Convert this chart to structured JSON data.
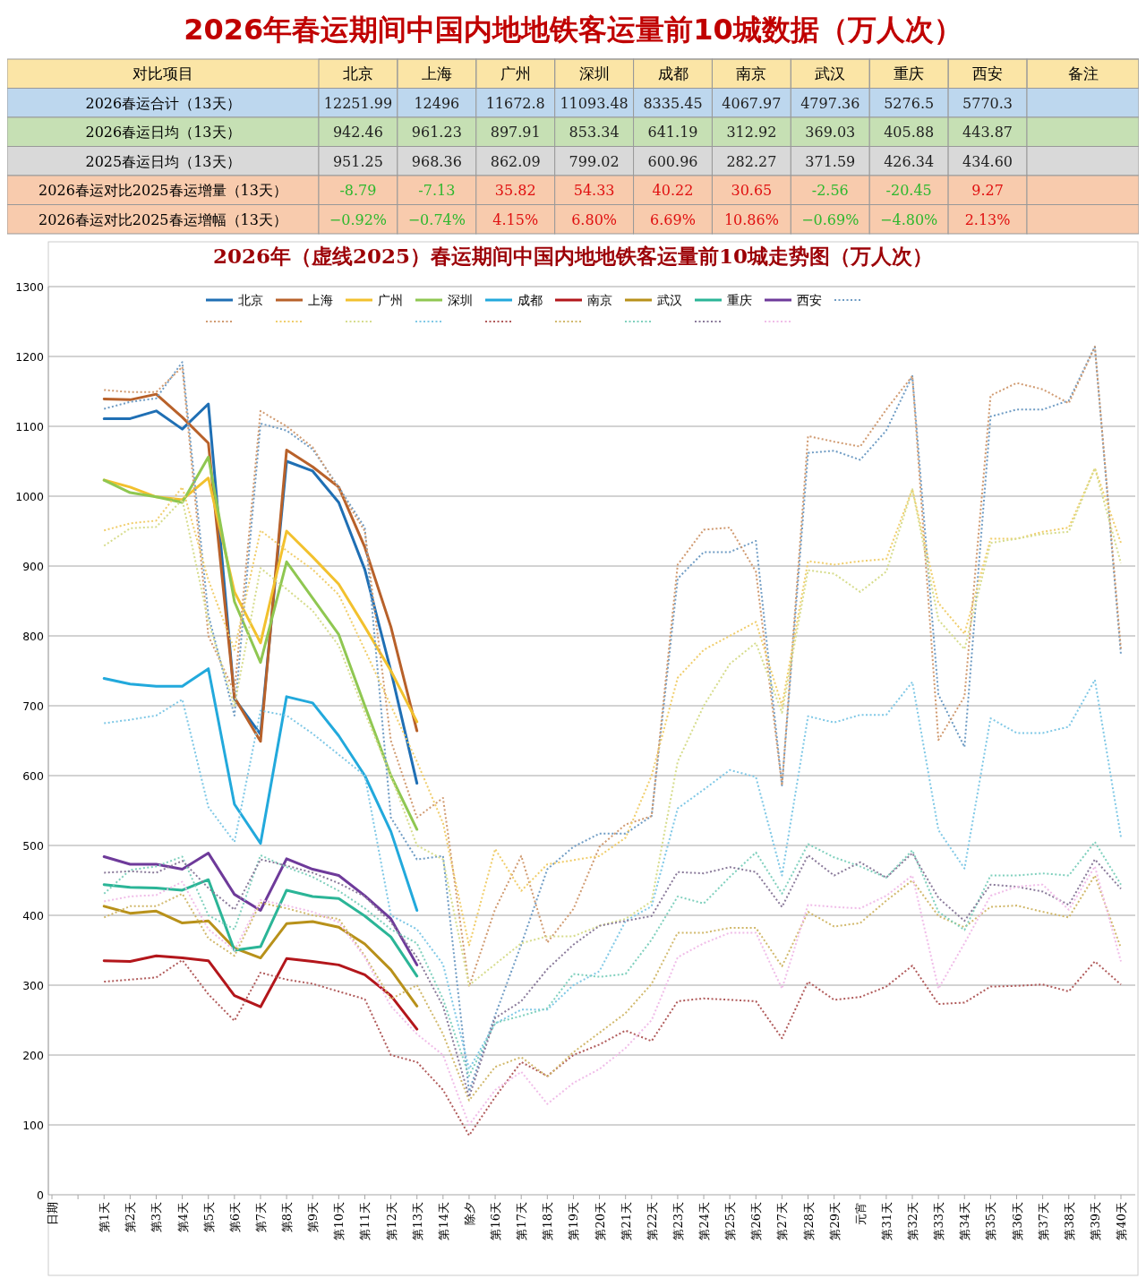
{
  "chart_data": [
    {
      "type": "heatmap",
      "title": "2026年春运期间中国内地地铁客运量前10城数据（万人次）",
      "ylabel": "对比项目",
      "categories": [
        "北京",
        "上海",
        "广州",
        "深圳",
        "成都",
        "南京",
        "武汉",
        "重庆",
        "西安",
        "备注"
      ],
      "y_categories": [
        "2026春运合计（13天）",
        "2026春运日均（13天）",
        "2025春运日均（13天）",
        "2026春运对比2025春运增量（13天）",
        "2026春运对比2025春运增幅（13天）"
      ],
      "colors": [
        "#bdd7ee",
        "#c6e0b4",
        "#d9d9d9",
        "#f8cbad",
        "#f8cbad"
      ],
      "cells": [
        [
          12251.99,
          12496,
          11672.8,
          11093.48,
          8335.45,
          4067.97,
          4797.36,
          5276.5,
          5770.3,
          null
        ],
        [
          942.46,
          961.23,
          897.91,
          853.34,
          641.19,
          312.92,
          369.03,
          405.88,
          443.87,
          null
        ],
        [
          951.25,
          968.36,
          862.09,
          799.02,
          600.96,
          282.27,
          371.59,
          426.34,
          434.6,
          null
        ],
        [
          -8.79,
          -7.13,
          35.82,
          54.33,
          40.22,
          30.65,
          -2.56,
          -20.45,
          9.27,
          null
        ],
        [
          -0.92,
          -0.74,
          4.15,
          6.8,
          6.69,
          10.86,
          -0.69,
          -4.8,
          2.13,
          null
        ]
      ],
      "cell_labels": [
        [
          "12251.99",
          "12496",
          "11672.8",
          "11093.48",
          "8335.45",
          "4067.97",
          "4797.36",
          "5276.5",
          "5770.3",
          null
        ],
        [
          "942.46",
          "961.23",
          "897.91",
          "853.34",
          "641.19",
          "312.92",
          "369.03",
          "405.88",
          "443.87",
          null
        ],
        [
          "951.25",
          "968.36",
          "862.09",
          "799.02",
          "600.96",
          "282.27",
          "371.59",
          "426.34",
          "434.60",
          null
        ],
        [
          "-8.79",
          "-7.13",
          "35.82",
          "54.33",
          "40.22",
          "30.65",
          "-2.56",
          "-20.45",
          "9.27",
          null
        ],
        [
          "−0.92%",
          "−0.74%",
          "4.15%",
          "6.80%",
          "6.69%",
          "10.86%",
          "−0.69%",
          "−4.80%",
          "2.13%",
          null
        ]
      ]
    },
    {
      "type": "line",
      "title": "2026年（虚线2025）春运期间中国内地地铁客运量前10城走势图（万人次）",
      "categories": [
        "日期",
        null,
        "第1天",
        "第2天",
        "第3天",
        "第4天",
        "第5天",
        "第6天",
        "第7天",
        "第8天",
        "第9天",
        "第10天",
        "第11天",
        "第12天",
        "第13天",
        "第14天",
        "除夕",
        "第16天",
        "第17天",
        "第18天",
        "第19天",
        "第20天",
        "第21天",
        "第22天",
        "第23天",
        "第24天",
        "第25天",
        "第26天",
        "第27天",
        "第28天",
        "第29天",
        "元宵",
        "第31天",
        "第32天",
        "第33天",
        "第34天",
        "第35天",
        "第36天",
        "第37天",
        "第38天",
        "第39天",
        "第40天"
      ],
      "ylim": [
        0,
        1300
      ],
      "yticks": [
        0,
        100,
        200,
        300,
        400,
        500,
        600,
        700,
        800,
        900,
        1000,
        1100,
        1200,
        1300
      ],
      "grid": "y",
      "legend": "top",
      "marker": "none",
      "series": [
        {
          "name": "北京",
          "color": "#1f6fb4",
          "line_style": "solid",
          "values": [
            null,
            null,
            1111,
            1111,
            1122,
            1096,
            1132,
            710,
            659,
            1050,
            1036,
            991,
            895,
            750,
            589,
            null,
            null,
            null,
            null,
            null,
            null,
            null,
            null,
            null,
            null,
            null,
            null,
            null,
            null,
            null,
            null,
            null,
            null,
            null,
            null,
            null,
            null,
            null,
            null,
            null,
            null,
            null
          ]
        },
        {
          "name": "上海",
          "color": "#b8612a",
          "line_style": "solid",
          "values": [
            null,
            null,
            1139,
            1138,
            1146,
            1113,
            1076,
            712,
            649,
            1066,
            1042,
            1013,
            927,
            813,
            664,
            null,
            null,
            null,
            null,
            null,
            null,
            null,
            null,
            null,
            null,
            null,
            null,
            null,
            null,
            null,
            null,
            null,
            null,
            null,
            null,
            null,
            null,
            null,
            null,
            null,
            null,
            null
          ]
        },
        {
          "name": "广州",
          "color": "#f2c12e",
          "line_style": "solid",
          "values": [
            null,
            null,
            1023,
            1013,
            999,
            995,
            1026,
            863,
            790,
            950,
            913,
            874,
            813,
            750,
            677,
            null,
            null,
            null,
            null,
            null,
            null,
            null,
            null,
            null,
            null,
            null,
            null,
            null,
            null,
            null,
            null,
            null,
            null,
            null,
            null,
            null,
            null,
            null,
            null,
            null,
            null,
            null
          ]
        },
        {
          "name": "深圳",
          "color": "#8fc751",
          "line_style": "solid",
          "values": [
            null,
            null,
            1023,
            1005,
            999,
            991,
            1056,
            849,
            762,
            906,
            854,
            802,
            700,
            600,
            523,
            null,
            null,
            null,
            null,
            null,
            null,
            null,
            null,
            null,
            null,
            null,
            null,
            null,
            null,
            null,
            null,
            null,
            null,
            null,
            null,
            null,
            null,
            null,
            null,
            null,
            null,
            null
          ]
        },
        {
          "name": "成都",
          "color": "#22a9dc",
          "line_style": "solid",
          "values": [
            null,
            null,
            739,
            731,
            728,
            728,
            753,
            559,
            503,
            713,
            704,
            657,
            600,
            520,
            407,
            null,
            null,
            null,
            null,
            null,
            null,
            null,
            null,
            null,
            null,
            null,
            null,
            null,
            null,
            null,
            null,
            null,
            null,
            null,
            null,
            null,
            null,
            null,
            null,
            null,
            null,
            null
          ]
        },
        {
          "name": "南京",
          "color": "#b3161b",
          "line_style": "solid",
          "values": [
            null,
            null,
            335,
            334,
            342,
            339,
            335,
            285,
            269,
            338,
            334,
            329,
            315,
            285,
            237,
            null,
            null,
            null,
            null,
            null,
            null,
            null,
            null,
            null,
            null,
            null,
            null,
            null,
            null,
            null,
            null,
            null,
            null,
            null,
            null,
            null,
            null,
            null,
            null,
            null,
            null,
            null
          ]
        },
        {
          "name": "武汉",
          "color": "#b8911a",
          "line_style": "solid",
          "values": [
            null,
            null,
            413,
            403,
            406,
            389,
            392,
            353,
            339,
            388,
            391,
            383,
            359,
            322,
            270,
            null,
            null,
            null,
            null,
            null,
            null,
            null,
            null,
            null,
            null,
            null,
            null,
            null,
            null,
            null,
            null,
            null,
            null,
            null,
            null,
            null,
            null,
            null,
            null,
            null,
            null,
            null
          ]
        },
        {
          "name": "重庆",
          "color": "#2bb597",
          "line_style": "solid",
          "values": [
            null,
            null,
            444,
            440,
            439,
            436,
            451,
            350,
            355,
            436,
            427,
            424,
            399,
            369,
            313,
            null,
            null,
            null,
            null,
            null,
            null,
            null,
            null,
            null,
            null,
            null,
            null,
            null,
            null,
            null,
            null,
            null,
            null,
            null,
            null,
            null,
            null,
            null,
            null,
            null,
            null,
            null
          ]
        },
        {
          "name": "西安",
          "color": "#6e3a9a",
          "line_style": "solid",
          "values": [
            null,
            null,
            484,
            473,
            473,
            466,
            489,
            430,
            407,
            481,
            466,
            457,
            428,
            395,
            329,
            null,
            null,
            null,
            null,
            null,
            null,
            null,
            null,
            null,
            null,
            null,
            null,
            null,
            null,
            null,
            null,
            null,
            null,
            null,
            null,
            null,
            null,
            null,
            null,
            null,
            null,
            null
          ]
        },
        {
          "color": "#6f9cc4",
          "line_style": "dotted",
          "values": [
            null,
            null,
            1125,
            1135,
            1140,
            1192,
            830,
            686,
            1104,
            1094,
            1067,
            1013,
            955,
            540,
            480,
            485,
            148,
            257,
            358,
            466,
            498,
            517,
            517,
            542,
            882,
            920,
            920,
            936,
            586,
            1062,
            1065,
            1052,
            1094,
            1172,
            716,
            641,
            1114,
            1124,
            1124,
            1137,
            1214,
            773
          ]
        },
        {
          "color": "#d09a70",
          "line_style": "dotted",
          "values": [
            null,
            null,
            1152,
            1149,
            1149,
            1185,
            800,
            720,
            1122,
            1100,
            1070,
            1010,
            950,
            650,
            540,
            568,
            298,
            409,
            485,
            361,
            409,
            498,
            530,
            542,
            902,
            952,
            955,
            892,
            586,
            1086,
            1078,
            1071,
            1124,
            1172,
            651,
            713,
            1144,
            1162,
            1153,
            1133,
            1214,
            781
          ]
        },
        {
          "color": "#f0cd6a",
          "line_style": "dotted",
          "values": [
            null,
            null,
            951,
            961,
            965,
            1013,
            880,
            780,
            951,
            922,
            895,
            859,
            780,
            700,
            620,
            532,
            357,
            495,
            435,
            473,
            479,
            485,
            511,
            600,
            740,
            780,
            800,
            820,
            700,
            907,
            902,
            907,
            910,
            1010,
            847,
            803,
            939,
            939,
            949,
            955,
            1040,
            933
          ]
        },
        {
          "color": "#d6dc8c",
          "line_style": "dotted",
          "values": [
            null,
            null,
            929,
            954,
            956,
            995,
            820,
            700,
            897,
            867,
            836,
            786,
            690,
            600,
            500,
            480,
            300,
            330,
            360,
            370,
            370,
            385,
            395,
            420,
            620,
            700,
            760,
            790,
            690,
            894,
            889,
            863,
            892,
            1010,
            823,
            781,
            933,
            939,
            946,
            949,
            1040,
            904
          ]
        },
        {
          "color": "#7fc8e6",
          "line_style": "dotted",
          "values": [
            null,
            null,
            675,
            680,
            686,
            709,
            555,
            505,
            693,
            686,
            660,
            630,
            600,
            400,
            380,
            330,
            180,
            245,
            265,
            265,
            300,
            320,
            392,
            413,
            553,
            580,
            608,
            598,
            457,
            685,
            676,
            687,
            687,
            734,
            522,
            467,
            682,
            661,
            661,
            670,
            737,
            512
          ]
        },
        {
          "color": "#b05a5a",
          "line_style": "dotted",
          "values": [
            null,
            null,
            305,
            308,
            311,
            336,
            287,
            249,
            318,
            308,
            302,
            291,
            280,
            200,
            190,
            150,
            85,
            140,
            190,
            170,
            200,
            215,
            235,
            220,
            277,
            281,
            279,
            277,
            224,
            305,
            279,
            283,
            298,
            328,
            273,
            275,
            298,
            299,
            301,
            291,
            334,
            301
          ]
        },
        {
          "color": "#d1b86b",
          "line_style": "dotted",
          "values": [
            null,
            null,
            397,
            413,
            413,
            431,
            367,
            342,
            418,
            410,
            400,
            395,
            342,
            280,
            300,
            230,
            135,
            183,
            197,
            169,
            204,
            232,
            260,
            302,
            375,
            375,
            382,
            382,
            327,
            405,
            384,
            389,
            421,
            450,
            399,
            383,
            412,
            414,
            405,
            397,
            457,
            353
          ]
        },
        {
          "color": "#7fd0bd",
          "line_style": "dotted",
          "values": [
            null,
            null,
            431,
            465,
            470,
            484,
            400,
            380,
            486,
            469,
            455,
            435,
            410,
            380,
            360,
            280,
            170,
            246,
            256,
            267,
            316,
            312,
            316,
            365,
            427,
            417,
            455,
            490,
            431,
            502,
            483,
            470,
            454,
            493,
            405,
            379,
            457,
            457,
            460,
            457,
            505,
            444
          ]
        },
        {
          "color": "#8a7a9a",
          "line_style": "dotted",
          "values": [
            null,
            null,
            461,
            463,
            461,
            478,
            439,
            408,
            480,
            471,
            461,
            446,
            427,
            390,
            340,
            270,
            140,
            253,
            277,
            323,
            358,
            385,
            392,
            399,
            462,
            460,
            469,
            462,
            412,
            486,
            457,
            476,
            454,
            489,
            425,
            392,
            444,
            441,
            434,
            415,
            480,
            438
          ]
        },
        {
          "color": "#f0bce8",
          "line_style": "dotted",
          "values": [
            null,
            null,
            420,
            427,
            429,
            448,
            380,
            350,
            422,
            414,
            405,
            390,
            340,
            270,
            230,
            200,
            100,
            150,
            176,
            130,
            160,
            180,
            210,
            250,
            340,
            360,
            375,
            375,
            295,
            415,
            412,
            410,
            428,
            457,
            295,
            360,
            428,
            441,
            444,
            408,
            470,
            334
          ]
        }
      ]
    }
  ]
}
